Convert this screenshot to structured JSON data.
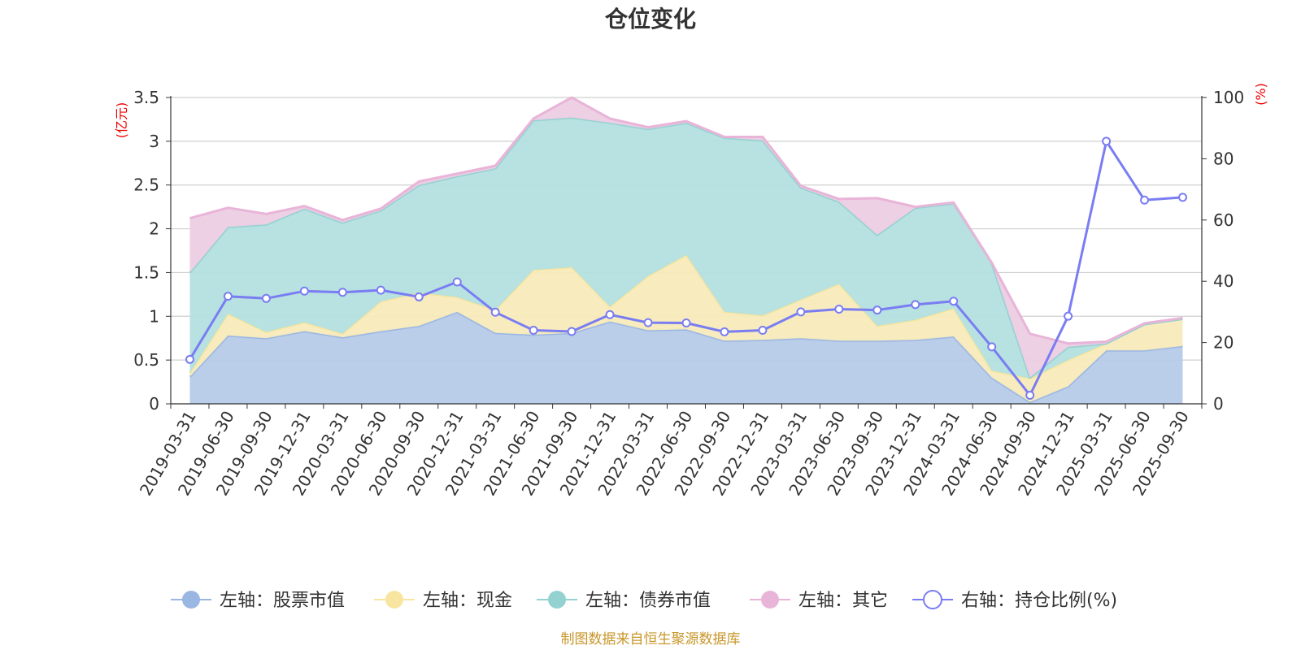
{
  "chart_data": {
    "type": "area",
    "title": "仓位变化",
    "source": "制图数据来自恒生聚源数据库",
    "left_axis": {
      "unit": "(亿元)",
      "ylim": [
        0,
        3.5
      ],
      "ticks": [
        "0",
        "0.5",
        "1",
        "1.5",
        "2",
        "2.5",
        "3",
        "3.5"
      ]
    },
    "right_axis": {
      "unit": "(%)",
      "ylim": [
        0,
        100
      ],
      "ticks": [
        "0",
        "20",
        "40",
        "60",
        "80",
        "100"
      ]
    },
    "grid": true,
    "legend_position": "bottom",
    "categories": [
      "2019-03-31",
      "2019-06-30",
      "2019-09-30",
      "2019-12-31",
      "2020-03-31",
      "2020-06-30",
      "2020-09-30",
      "2020-12-31",
      "2021-03-31",
      "2021-06-30",
      "2021-09-30",
      "2021-12-31",
      "2022-03-31",
      "2022-06-30",
      "2022-09-30",
      "2022-12-31",
      "2023-03-31",
      "2023-06-30",
      "2023-09-30",
      "2023-12-31",
      "2024-03-31",
      "2024-06-30",
      "2024-09-30",
      "2024-12-31",
      "2025-03-31",
      "2025-06-30",
      "2025-09-30"
    ],
    "series": [
      {
        "name": "左轴：股票市值",
        "axis": "left",
        "color": "#9ab6e2",
        "fill": "#b6cbe9",
        "values": [
          0.31,
          0.78,
          0.75,
          0.83,
          0.76,
          0.83,
          0.89,
          1.05,
          0.81,
          0.79,
          0.81,
          0.94,
          0.84,
          0.85,
          0.72,
          0.73,
          0.75,
          0.72,
          0.72,
          0.73,
          0.77,
          0.3,
          0.02,
          0.2,
          0.61,
          0.61,
          0.66
        ]
      },
      {
        "name": "左轴：现金",
        "axis": "left",
        "color": "#f7e5a0",
        "fill": "#f8ebbc",
        "values": [
          0.04,
          0.25,
          0.07,
          0.1,
          0.04,
          0.34,
          0.38,
          0.17,
          0.26,
          0.74,
          0.75,
          0.17,
          0.62,
          0.85,
          0.33,
          0.28,
          0.44,
          0.65,
          0.17,
          0.23,
          0.32,
          0.08,
          0.27,
          0.3,
          0.08,
          0.3,
          0.31
        ]
      },
      {
        "name": "左轴：债券市值",
        "axis": "left",
        "color": "#93d2d1",
        "fill": "#b3e0df",
        "values": [
          1.15,
          0.99,
          1.23,
          1.3,
          1.27,
          1.04,
          1.23,
          1.38,
          1.62,
          1.71,
          1.71,
          2.1,
          1.68,
          1.51,
          1.99,
          2.0,
          1.28,
          0.94,
          1.04,
          1.28,
          1.2,
          1.23,
          0.01,
          0.15,
          0.0,
          0.0,
          0.0
        ]
      },
      {
        "name": "左轴：其它",
        "axis": "left",
        "color": "#e8b4d8",
        "fill": "#edcde4",
        "values": [
          0.62,
          0.22,
          0.12,
          0.03,
          0.03,
          0.02,
          0.04,
          0.03,
          0.03,
          0.02,
          0.23,
          0.05,
          0.02,
          0.02,
          0.01,
          0.04,
          0.02,
          0.03,
          0.42,
          0.01,
          0.01,
          0.0,
          0.5,
          0.04,
          0.02,
          0.01,
          0.01
        ]
      },
      {
        "name": "右轴：持仓比例(%)",
        "axis": "right",
        "color": "#7a7df2",
        "values": [
          14.5,
          35.1,
          34.4,
          36.8,
          36.4,
          37.1,
          34.9,
          39.8,
          29.9,
          24.0,
          23.6,
          29.1,
          26.5,
          26.4,
          23.5,
          24.0,
          30.0,
          30.9,
          30.6,
          32.4,
          33.5,
          18.6,
          2.8,
          28.6,
          85.7,
          66.5,
          67.4
        ]
      }
    ]
  }
}
